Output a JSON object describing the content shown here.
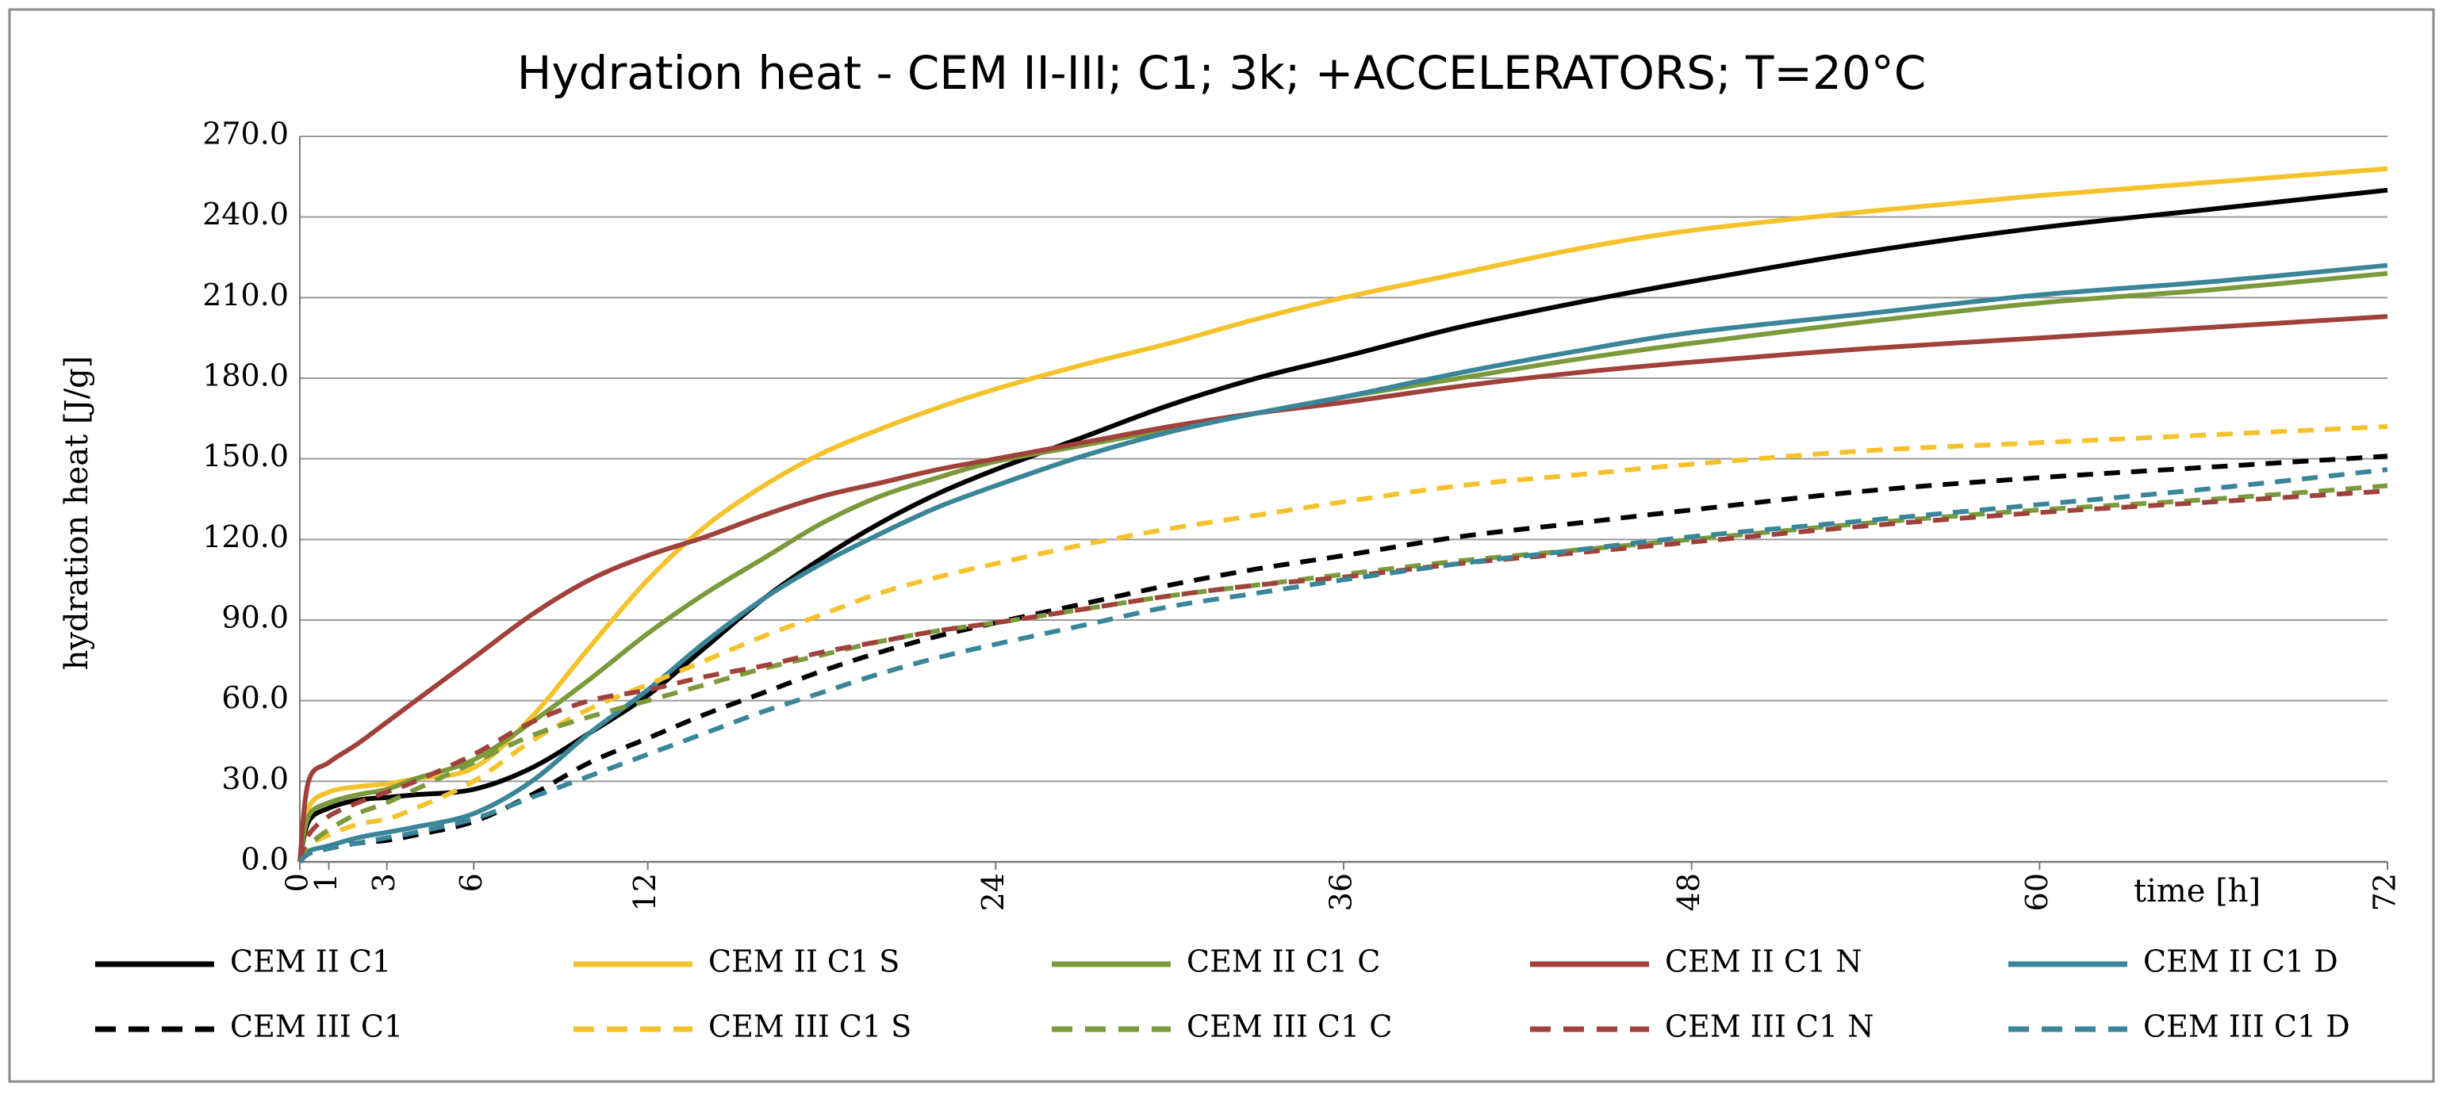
{
  "chart_data": {
    "type": "line",
    "title": "Hydration heat - CEM II-III; C1; 3k; +ACCELERATORS; T=20°C",
    "xlabel": "time [h]",
    "ylabel": "hydration heat [J/g]",
    "xlim": [
      0,
      72
    ],
    "ylim": [
      0,
      270
    ],
    "x_ticks": [
      0,
      1,
      3,
      6,
      12,
      24,
      36,
      48,
      60,
      72
    ],
    "x_tick_labels": [
      "0",
      "1",
      "3",
      "6",
      "12",
      "24",
      "36",
      "48",
      "60",
      "72"
    ],
    "y_ticks": [
      0,
      30,
      60,
      90,
      120,
      150,
      180,
      210,
      240,
      270
    ],
    "y_tick_labels": [
      "0.0",
      "30.0",
      "60.0",
      "90.0",
      "120.0",
      "150.0",
      "180.0",
      "210.0",
      "240.0",
      "270.0"
    ],
    "grid": "horizontal",
    "legend_position": "bottom",
    "series": [
      {
        "name": "CEM II C1",
        "color": "#000000",
        "dash": "solid",
        "x": [
          0,
          0.3,
          1,
          2,
          3,
          4,
          6,
          8,
          10,
          12,
          14,
          16,
          18,
          20,
          22,
          24,
          27,
          30,
          33,
          36,
          40,
          44,
          48,
          54,
          60,
          66,
          72
        ],
        "y": [
          0,
          15,
          20,
          23,
          24,
          25,
          27,
          35,
          48,
          62,
          80,
          98,
          113,
          126,
          137,
          146,
          158,
          170,
          180,
          188,
          199,
          208,
          216,
          227,
          236,
          243,
          250
        ]
      },
      {
        "name": "CEM II C1 S",
        "color": "#f5c22b",
        "dash": "solid",
        "x": [
          0,
          0.3,
          1,
          2,
          3,
          4,
          6,
          8,
          10,
          12,
          14,
          16,
          18,
          20,
          22,
          24,
          27,
          30,
          33,
          36,
          40,
          44,
          48,
          54,
          60,
          66,
          72
        ],
        "y": [
          0,
          20,
          26,
          28,
          29,
          31,
          35,
          54,
          80,
          105,
          125,
          140,
          152,
          161,
          169,
          176,
          185,
          193,
          202,
          210,
          219,
          228,
          235,
          242,
          248,
          253,
          258
        ]
      },
      {
        "name": "CEM II C1 C",
        "color": "#7a9a3b",
        "dash": "solid",
        "x": [
          0,
          0.3,
          1,
          2,
          3,
          4,
          6,
          8,
          10,
          12,
          14,
          16,
          18,
          20,
          22,
          24,
          27,
          30,
          33,
          36,
          40,
          44,
          48,
          54,
          60,
          66,
          72
        ],
        "y": [
          0,
          17,
          22,
          25,
          27,
          31,
          38,
          52,
          68,
          85,
          100,
          113,
          126,
          136,
          143,
          149,
          155,
          161,
          167,
          173,
          180,
          187,
          193,
          201,
          208,
          213,
          219
        ]
      },
      {
        "name": "CEM II C1 N",
        "color": "#a0413b",
        "dash": "solid",
        "x": [
          0,
          0.3,
          1,
          2,
          3,
          4,
          6,
          8,
          10,
          12,
          14,
          16,
          18,
          20,
          22,
          24,
          27,
          30,
          33,
          36,
          40,
          44,
          48,
          54,
          60,
          66,
          72
        ],
        "y": [
          0,
          30,
          37,
          44,
          52,
          60,
          76,
          92,
          105,
          114,
          121,
          129,
          136,
          141,
          146,
          150,
          156,
          162,
          167,
          171,
          177,
          182,
          186,
          191,
          195,
          199,
          203
        ]
      },
      {
        "name": "CEM II C1 D",
        "color": "#3a8599",
        "dash": "solid",
        "x": [
          0,
          0.3,
          1,
          2,
          3,
          4,
          6,
          8,
          10,
          12,
          14,
          16,
          18,
          20,
          22,
          24,
          27,
          30,
          33,
          36,
          40,
          44,
          48,
          54,
          60,
          66,
          72
        ],
        "y": [
          0,
          4,
          6,
          9,
          11,
          13,
          18,
          30,
          48,
          64,
          82,
          98,
          111,
          122,
          132,
          140,
          151,
          160,
          167,
          173,
          182,
          190,
          197,
          204,
          211,
          216,
          222
        ]
      },
      {
        "name": "CEM III C1",
        "color": "#000000",
        "dash": "dashed",
        "x": [
          0,
          0.3,
          1,
          2,
          3,
          4,
          6,
          8,
          10,
          12,
          14,
          16,
          18,
          20,
          22,
          24,
          27,
          30,
          33,
          36,
          40,
          44,
          48,
          54,
          60,
          66,
          72
        ],
        "y": [
          0,
          3,
          5,
          7,
          8,
          10,
          15,
          25,
          37,
          46,
          55,
          63,
          71,
          78,
          84,
          89,
          96,
          103,
          109,
          114,
          121,
          126,
          131,
          138,
          143,
          147,
          151
        ]
      },
      {
        "name": "CEM III C1 S",
        "color": "#f5c22b",
        "dash": "dashed",
        "x": [
          0,
          0.3,
          1,
          2,
          3,
          4,
          6,
          8,
          10,
          12,
          14,
          16,
          18,
          20,
          22,
          24,
          27,
          30,
          33,
          36,
          40,
          44,
          48,
          54,
          60,
          66,
          72
        ],
        "y": [
          0,
          6,
          10,
          14,
          16,
          20,
          30,
          45,
          57,
          66,
          75,
          84,
          92,
          100,
          106,
          111,
          118,
          124,
          129,
          134,
          140,
          144,
          148,
          153,
          156,
          159,
          162
        ]
      },
      {
        "name": "CEM III C1 C",
        "color": "#7a9a3b",
        "dash": "dashed",
        "x": [
          0,
          0.3,
          1,
          2,
          3,
          4,
          6,
          8,
          10,
          12,
          14,
          16,
          18,
          20,
          22,
          24,
          27,
          30,
          33,
          36,
          40,
          44,
          48,
          54,
          60,
          66,
          72
        ],
        "y": [
          0,
          6,
          12,
          18,
          22,
          27,
          37,
          47,
          54,
          60,
          66,
          72,
          77,
          82,
          86,
          89,
          94,
          99,
          103,
          107,
          112,
          116,
          120,
          126,
          131,
          135,
          140
        ]
      },
      {
        "name": "CEM III C1 N",
        "color": "#a0413b",
        "dash": "dashed",
        "x": [
          0,
          0.3,
          1,
          2,
          3,
          4,
          6,
          8,
          10,
          12,
          14,
          16,
          18,
          20,
          22,
          24,
          27,
          30,
          33,
          36,
          40,
          44,
          48,
          54,
          60,
          66,
          72
        ],
        "y": [
          0,
          10,
          17,
          22,
          26,
          30,
          40,
          52,
          60,
          64,
          69,
          73,
          78,
          82,
          86,
          89,
          94,
          99,
          103,
          106,
          111,
          115,
          119,
          125,
          130,
          134,
          138
        ]
      },
      {
        "name": "CEM III C1 D",
        "color": "#3a8599",
        "dash": "dashed",
        "x": [
          0,
          0.3,
          1,
          2,
          3,
          4,
          6,
          8,
          10,
          12,
          14,
          16,
          18,
          20,
          22,
          24,
          27,
          30,
          33,
          36,
          40,
          44,
          48,
          54,
          60,
          66,
          72
        ],
        "y": [
          0,
          3,
          5,
          7,
          9,
          11,
          16,
          24,
          32,
          40,
          48,
          56,
          63,
          70,
          76,
          81,
          88,
          95,
          100,
          105,
          111,
          116,
          121,
          127,
          133,
          139,
          146
        ]
      }
    ]
  }
}
